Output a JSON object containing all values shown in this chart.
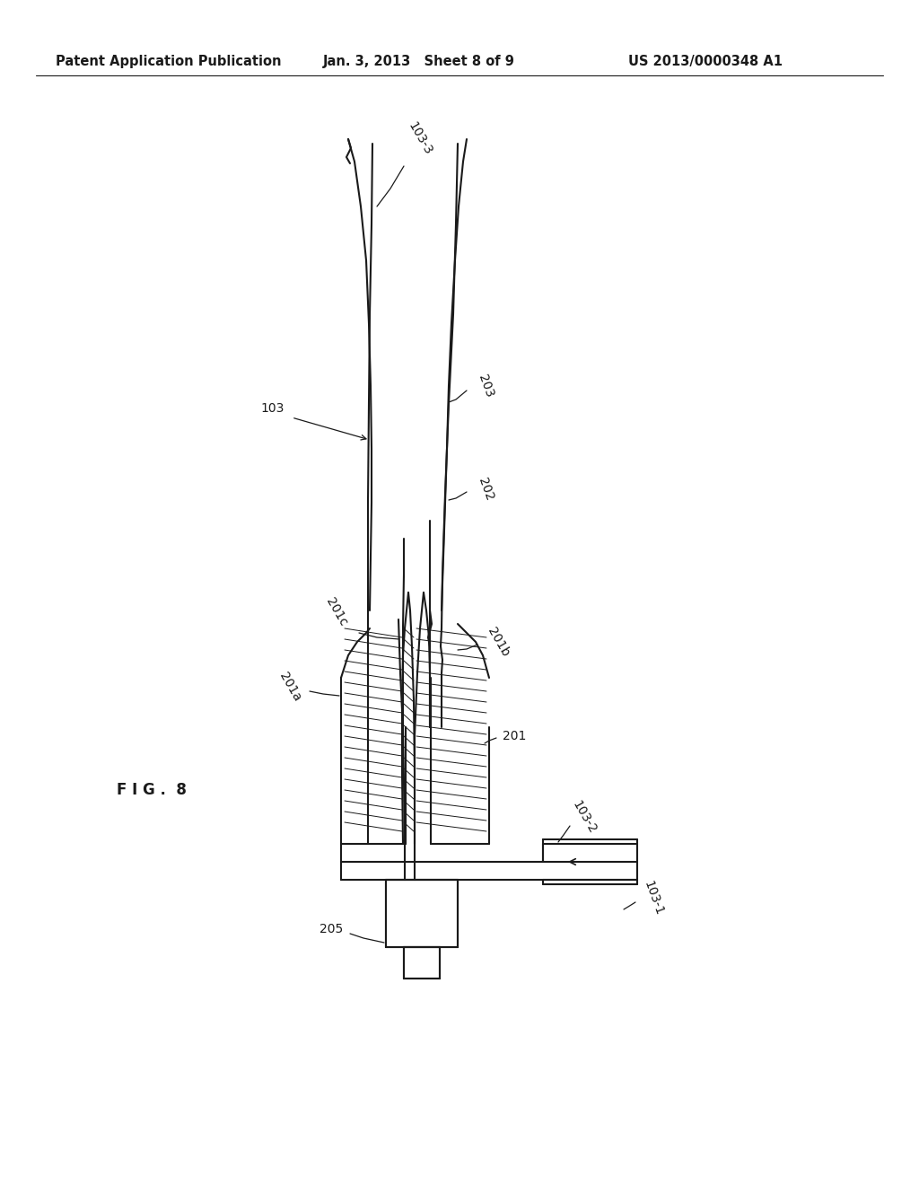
{
  "background_color": "#ffffff",
  "line_color": "#1a1a1a",
  "header_left": "Patent Application Publication",
  "header_center": "Jan. 3, 2013   Sheet 8 of 9",
  "header_right": "US 2013/0000348 A1",
  "fig_label": "F I G .  8",
  "labels": {
    "103_3": "103-3",
    "103": "103",
    "203": "203",
    "202": "202",
    "201c": "201c",
    "201a": "201a",
    "201b": "201b",
    "201": "201",
    "103_2": "103-2",
    "205": "205",
    "103_1": "103-1"
  }
}
